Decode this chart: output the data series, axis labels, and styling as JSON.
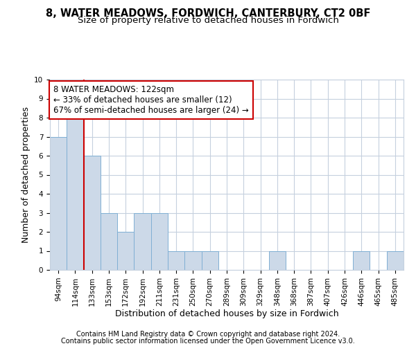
{
  "title1": "8, WATER MEADOWS, FORDWICH, CANTERBURY, CT2 0BF",
  "title2": "Size of property relative to detached houses in Fordwich",
  "xlabel": "Distribution of detached houses by size in Fordwich",
  "ylabel": "Number of detached properties",
  "categories": [
    "94sqm",
    "114sqm",
    "133sqm",
    "153sqm",
    "172sqm",
    "192sqm",
    "211sqm",
    "231sqm",
    "250sqm",
    "270sqm",
    "289sqm",
    "309sqm",
    "329sqm",
    "348sqm",
    "368sqm",
    "387sqm",
    "407sqm",
    "426sqm",
    "446sqm",
    "465sqm",
    "485sqm"
  ],
  "values": [
    7,
    8,
    6,
    3,
    2,
    3,
    3,
    1,
    1,
    1,
    0,
    0,
    0,
    1,
    0,
    0,
    0,
    0,
    1,
    0,
    1
  ],
  "bar_color": "#ccd9e8",
  "bar_edge_color": "#7fafd4",
  "grid_color": "#c5d0de",
  "vline_x": 1.5,
  "vline_color": "#cc0000",
  "annotation_text": "8 WATER MEADOWS: 122sqm\n← 33% of detached houses are smaller (12)\n67% of semi-detached houses are larger (24) →",
  "annotation_box_color": "#ffffff",
  "annotation_box_edge": "#cc0000",
  "ylim": [
    0,
    10
  ],
  "yticks": [
    0,
    1,
    2,
    3,
    4,
    5,
    6,
    7,
    8,
    9,
    10
  ],
  "footer1": "Contains HM Land Registry data © Crown copyright and database right 2024.",
  "footer2": "Contains public sector information licensed under the Open Government Licence v3.0.",
  "title1_fontsize": 10.5,
  "title2_fontsize": 9.5,
  "axis_label_fontsize": 9,
  "tick_fontsize": 7.5,
  "annotation_fontsize": 8.5,
  "footer_fontsize": 7,
  "bg_color": "#ffffff"
}
